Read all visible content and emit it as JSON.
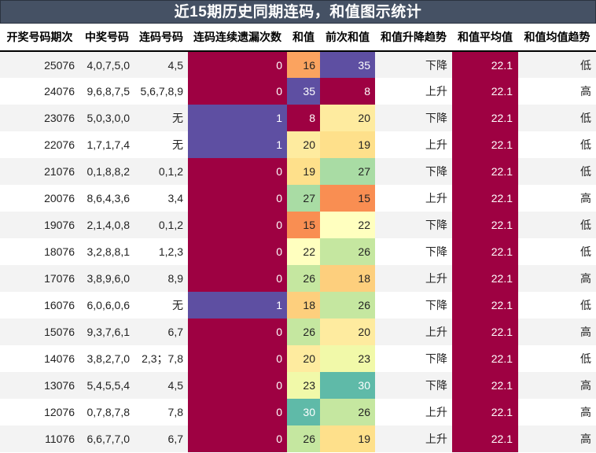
{
  "title": "近15期历史同期连码，和值图示统计",
  "columns": [
    "开奖号码期次",
    "中奖号码",
    "连码号码",
    "连码连续遗漏次数",
    "和值",
    "前次和值",
    "和值升降趋势",
    "和值平均值",
    "和值均值趋势"
  ],
  "colors": {
    "header_bg": "#455164",
    "miss_0": "#9e0142",
    "miss_1": "#5e4fa2",
    "avg_bg": "#9e0142",
    "row_alt": "#f3f3f3"
  },
  "sum_color_scale": {
    "8": "#9e0142",
    "15": "#f98e52",
    "16": "#fba35f",
    "18": "#fdcf7d",
    "19": "#fee08b",
    "20": "#feeb9f",
    "22": "#ffffbf",
    "23": "#f1f9a9",
    "26": "#c5e7a0",
    "27": "#a9dca4",
    "30": "#5fbaa8",
    "35": "#5e4fa2"
  },
  "rows": [
    {
      "period": "25076",
      "numbers": "4,0,7,5,0",
      "consecutive": "4,5",
      "miss": "0",
      "sum": "16",
      "prev_sum": "35",
      "trend": "下降",
      "avg": "22.1",
      "avg_trend": "低"
    },
    {
      "period": "24076",
      "numbers": "9,6,8,7,5",
      "consecutive": "5,6,7,8,9",
      "miss": "0",
      "sum": "35",
      "prev_sum": "8",
      "trend": "上升",
      "avg": "22.1",
      "avg_trend": "高"
    },
    {
      "period": "23076",
      "numbers": "5,0,3,0,0",
      "consecutive": "无",
      "miss": "1",
      "sum": "8",
      "prev_sum": "20",
      "trend": "下降",
      "avg": "22.1",
      "avg_trend": "低"
    },
    {
      "period": "22076",
      "numbers": "1,7,1,7,4",
      "consecutive": "无",
      "miss": "1",
      "sum": "20",
      "prev_sum": "19",
      "trend": "上升",
      "avg": "22.1",
      "avg_trend": "低"
    },
    {
      "period": "21076",
      "numbers": "0,1,8,8,2",
      "consecutive": "0,1,2",
      "miss": "0",
      "sum": "19",
      "prev_sum": "27",
      "trend": "下降",
      "avg": "22.1",
      "avg_trend": "低"
    },
    {
      "period": "20076",
      "numbers": "8,6,4,3,6",
      "consecutive": "3,4",
      "miss": "0",
      "sum": "27",
      "prev_sum": "15",
      "trend": "上升",
      "avg": "22.1",
      "avg_trend": "高"
    },
    {
      "period": "19076",
      "numbers": "2,1,4,0,8",
      "consecutive": "0,1,2",
      "miss": "0",
      "sum": "15",
      "prev_sum": "22",
      "trend": "下降",
      "avg": "22.1",
      "avg_trend": "低"
    },
    {
      "period": "18076",
      "numbers": "3,2,8,8,1",
      "consecutive": "1,2,3",
      "miss": "0",
      "sum": "22",
      "prev_sum": "26",
      "trend": "下降",
      "avg": "22.1",
      "avg_trend": "低"
    },
    {
      "period": "17076",
      "numbers": "3,8,9,6,0",
      "consecutive": "8,9",
      "miss": "0",
      "sum": "26",
      "prev_sum": "18",
      "trend": "上升",
      "avg": "22.1",
      "avg_trend": "高"
    },
    {
      "period": "16076",
      "numbers": "6,0,6,0,6",
      "consecutive": "无",
      "miss": "1",
      "sum": "18",
      "prev_sum": "26",
      "trend": "下降",
      "avg": "22.1",
      "avg_trend": "低"
    },
    {
      "period": "15076",
      "numbers": "9,3,7,6,1",
      "consecutive": "6,7",
      "miss": "0",
      "sum": "26",
      "prev_sum": "20",
      "trend": "上升",
      "avg": "22.1",
      "avg_trend": "高"
    },
    {
      "period": "14076",
      "numbers": "3,8,2,7,0",
      "consecutive": "2,3；7,8",
      "miss": "0",
      "sum": "20",
      "prev_sum": "23",
      "trend": "下降",
      "avg": "22.1",
      "avg_trend": "低"
    },
    {
      "period": "13076",
      "numbers": "5,4,5,5,4",
      "consecutive": "4,5",
      "miss": "0",
      "sum": "23",
      "prev_sum": "30",
      "trend": "下降",
      "avg": "22.1",
      "avg_trend": "高"
    },
    {
      "period": "12076",
      "numbers": "0,7,8,7,8",
      "consecutive": "7,8",
      "miss": "0",
      "sum": "30",
      "prev_sum": "26",
      "trend": "上升",
      "avg": "22.1",
      "avg_trend": "高"
    },
    {
      "period": "11076",
      "numbers": "6,6,7,7,0",
      "consecutive": "6,7",
      "miss": "0",
      "sum": "26",
      "prev_sum": "19",
      "trend": "上升",
      "avg": "22.1",
      "avg_trend": "高"
    }
  ]
}
